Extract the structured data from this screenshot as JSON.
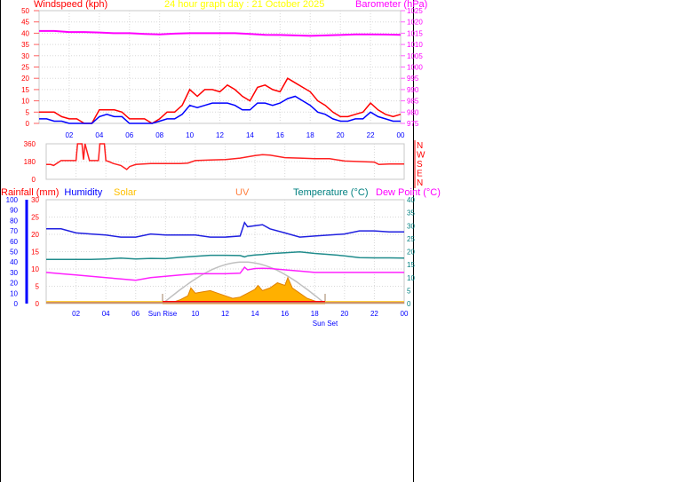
{
  "chart_data": [
    {
      "type": "line",
      "title": "24 hour graph day : 21 October 2025",
      "left_axis_label": "Windspeed (kph)",
      "right_axis_label": "Barometer (hPa)",
      "ylim_left": [
        0,
        50
      ],
      "ylim_right": [
        975,
        1025
      ],
      "y_ticks_left": [
        "0",
        "5",
        "10",
        "15",
        "20",
        "25",
        "30",
        "35",
        "40",
        "45",
        "50"
      ],
      "y_ticks_right": [
        "975",
        "980",
        "985",
        "990",
        "995",
        "1000",
        "1005",
        "1010",
        "1015",
        "1020",
        "1025"
      ],
      "x_tick_labels": [
        "02",
        "04",
        "06",
        "08",
        "10",
        "12",
        "14",
        "16",
        "18",
        "20",
        "22",
        "00"
      ],
      "grid": true,
      "colors": {
        "gust": "#ff0000",
        "average": "#0000ff",
        "barometer": "#ff00ff",
        "title": "#ffff00"
      },
      "hours_half": [
        0,
        0.5,
        1,
        1.5,
        2,
        2.5,
        3,
        3.5,
        4,
        4.5,
        5,
        5.5,
        6,
        6.5,
        7,
        7.5,
        8,
        8.5,
        9,
        9.5,
        10,
        10.5,
        11,
        11.5,
        12,
        12.5,
        13,
        13.5,
        14,
        14.5,
        15,
        15.5,
        16,
        16.5,
        17,
        17.5,
        18,
        18.5,
        19,
        19.5,
        20,
        20.5,
        21,
        21.5,
        22,
        22.5,
        23,
        23.5,
        24
      ],
      "series": [
        {
          "key": "gust",
          "axis": "left",
          "values": [
            5,
            5,
            5,
            3,
            2,
            2,
            0,
            0,
            6,
            6,
            6,
            5,
            2,
            2,
            2,
            0,
            2,
            5,
            5,
            8,
            15,
            12,
            15,
            15,
            14,
            17,
            15,
            12,
            10,
            16,
            17,
            15,
            14,
            20,
            18,
            16,
            14,
            10,
            8,
            5,
            3,
            3,
            4,
            5,
            9,
            6,
            4,
            3,
            4
          ]
        },
        {
          "key": "average",
          "axis": "left",
          "values": [
            2,
            2,
            1,
            1,
            0,
            0,
            0,
            0,
            3,
            4,
            3,
            3,
            0,
            0,
            0,
            0,
            1,
            2,
            2,
            4,
            8,
            7,
            8,
            9,
            9,
            9,
            8,
            6,
            6,
            9,
            9,
            8,
            9,
            11,
            12,
            10,
            8,
            5,
            4,
            2,
            1,
            1,
            2,
            2,
            5,
            3,
            2,
            1,
            1
          ]
        },
        {
          "key": "barometer",
          "axis": "right",
          "hours": [
            0,
            1,
            2,
            3,
            4,
            5,
            6,
            7,
            8,
            9,
            10,
            11,
            12,
            13,
            14,
            15,
            16,
            17,
            18,
            19,
            20,
            21,
            22,
            23,
            24
          ],
          "values": [
            1016,
            1016,
            1015.5,
            1015.5,
            1015.3,
            1015,
            1015,
            1014.7,
            1014.5,
            1014.8,
            1015,
            1015,
            1015,
            1015,
            1014.7,
            1014.3,
            1014.2,
            1014,
            1013.8,
            1014,
            1014.2,
            1014.5,
            1014.5,
            1014.4,
            1014.3
          ]
        }
      ]
    },
    {
      "type": "line",
      "title": "",
      "ylim": [
        0,
        360
      ],
      "y_ticks": [
        "0",
        "180",
        "360"
      ],
      "direction_labels": [
        "N",
        "W",
        "S",
        "E",
        "N"
      ],
      "grid": true,
      "colors": {
        "direction": "#ff2020"
      },
      "series": [
        {
          "key": "wind_direction",
          "hours": [
            0,
            0.3,
            0.5,
            1,
            2,
            2.1,
            2.4,
            2.5,
            2.6,
            2.9,
            3.5,
            3.6,
            3.9,
            4,
            4.2,
            4.5,
            5,
            5.4,
            5.6,
            6,
            7,
            8,
            9,
            9.5,
            10,
            11,
            12,
            13,
            14,
            14.5,
            15,
            16,
            17,
            18,
            19,
            20,
            21,
            22,
            22.3,
            23,
            24
          ],
          "values": [
            150,
            150,
            140,
            190,
            190,
            360,
            360,
            200,
            360,
            190,
            190,
            360,
            360,
            190,
            180,
            160,
            140,
            100,
            130,
            150,
            160,
            160,
            160,
            165,
            190,
            195,
            200,
            215,
            240,
            250,
            245,
            220,
            215,
            210,
            210,
            185,
            180,
            175,
            150,
            155,
            155
          ]
        }
      ]
    },
    {
      "type": "line",
      "legend": [
        "Rainfall (mm)",
        "Humidity",
        "Solar",
        "UV",
        "Temperature (°C)",
        "Dew Point (°C)"
      ],
      "legend_colors": [
        "#ff0000",
        "#0000ff",
        "#ffc000",
        "#ff8040",
        "#008080",
        "#ff00ff"
      ],
      "ylim_humidity": [
        0,
        100
      ],
      "ylim_rainfall": [
        0,
        30
      ],
      "ylim_temperature": [
        0,
        40
      ],
      "y_ticks_humidity": [
        "0",
        "10",
        "20",
        "30",
        "40",
        "50",
        "60",
        "70",
        "80",
        "90",
        "100"
      ],
      "y_ticks_rainfall": [
        "0",
        "5",
        "10",
        "15",
        "20",
        "25",
        "30"
      ],
      "y_ticks_temperature": [
        "0",
        "5",
        "10",
        "15",
        "20",
        "25",
        "30",
        "35",
        "40"
      ],
      "x_tick_labels": [
        "02",
        "04",
        "06",
        "08",
        "10",
        "12",
        "14",
        "16",
        "18",
        "20",
        "22",
        "00"
      ],
      "sun_rise_label": "Sun Rise",
      "sun_set_label": "Sun Set",
      "sunrise_hour": 7.8,
      "sunset_hour": 18.7,
      "grid": true,
      "hours": [
        0,
        1,
        2,
        3,
        4,
        5,
        6,
        7,
        8,
        9,
        10,
        11,
        12,
        13,
        13.3,
        13.5,
        14,
        14.5,
        15,
        16,
        17,
        18,
        19,
        20,
        21,
        22,
        23,
        24
      ],
      "series": [
        {
          "key": "humidity",
          "axis": "humidity",
          "color": "#2020e0",
          "values": [
            72,
            72,
            68,
            67,
            66,
            64,
            64,
            67,
            66,
            66,
            66,
            64,
            64,
            65,
            78,
            74,
            75,
            76,
            72,
            68,
            64,
            65,
            66,
            67,
            70,
            70,
            69,
            69
          ]
        },
        {
          "key": "temperature",
          "axis": "temperature",
          "color": "#208c8c",
          "values": [
            17,
            17,
            17,
            17,
            17.2,
            17.5,
            17.2,
            17.4,
            17.3,
            17.8,
            18.2,
            18.6,
            18.6,
            18.5,
            18,
            18.4,
            18.7,
            18.9,
            19.2,
            19.6,
            19.9,
            19.3,
            18.9,
            18.4,
            17.7,
            17.6,
            17.6,
            17.5
          ]
        },
        {
          "key": "dew_point",
          "axis": "temperature",
          "color": "#ff20ff",
          "values": [
            12,
            11.5,
            11,
            10.5,
            10,
            9.5,
            9,
            10,
            10.5,
            11,
            11.5,
            11.5,
            11.5,
            11.7,
            14,
            13,
            13.5,
            13.6,
            13.5,
            13,
            12.5,
            12,
            12,
            12,
            12,
            12,
            12,
            12
          ]
        },
        {
          "key": "rainfall",
          "axis": "rainfall",
          "color": "#ff0000",
          "values": [
            0,
            0,
            0,
            0,
            0,
            0,
            0,
            0,
            0,
            0,
            0,
            0,
            0,
            0,
            0,
            0,
            0,
            0,
            0,
            0,
            0,
            0,
            0,
            0,
            0,
            0,
            0,
            0
          ]
        }
      ],
      "solar": {
        "axis": "temperature",
        "hours": [
          7.8,
          8.5,
          9,
          9.5,
          9.7,
          10,
          10.5,
          11,
          11.5,
          12,
          12.5,
          13,
          13.5,
          14,
          14.2,
          14.5,
          15,
          15.5,
          16,
          16.2,
          16.5,
          17,
          17.5,
          18,
          18.7
        ],
        "values": [
          0,
          0.5,
          1.5,
          3,
          6,
          4,
          4.5,
          5,
          4,
          3,
          2,
          2.5,
          4,
          5.5,
          7,
          5,
          6,
          8,
          7,
          10,
          6,
          4,
          2,
          1,
          0
        ]
      },
      "solar_theoretical_peak": 16
    }
  ]
}
